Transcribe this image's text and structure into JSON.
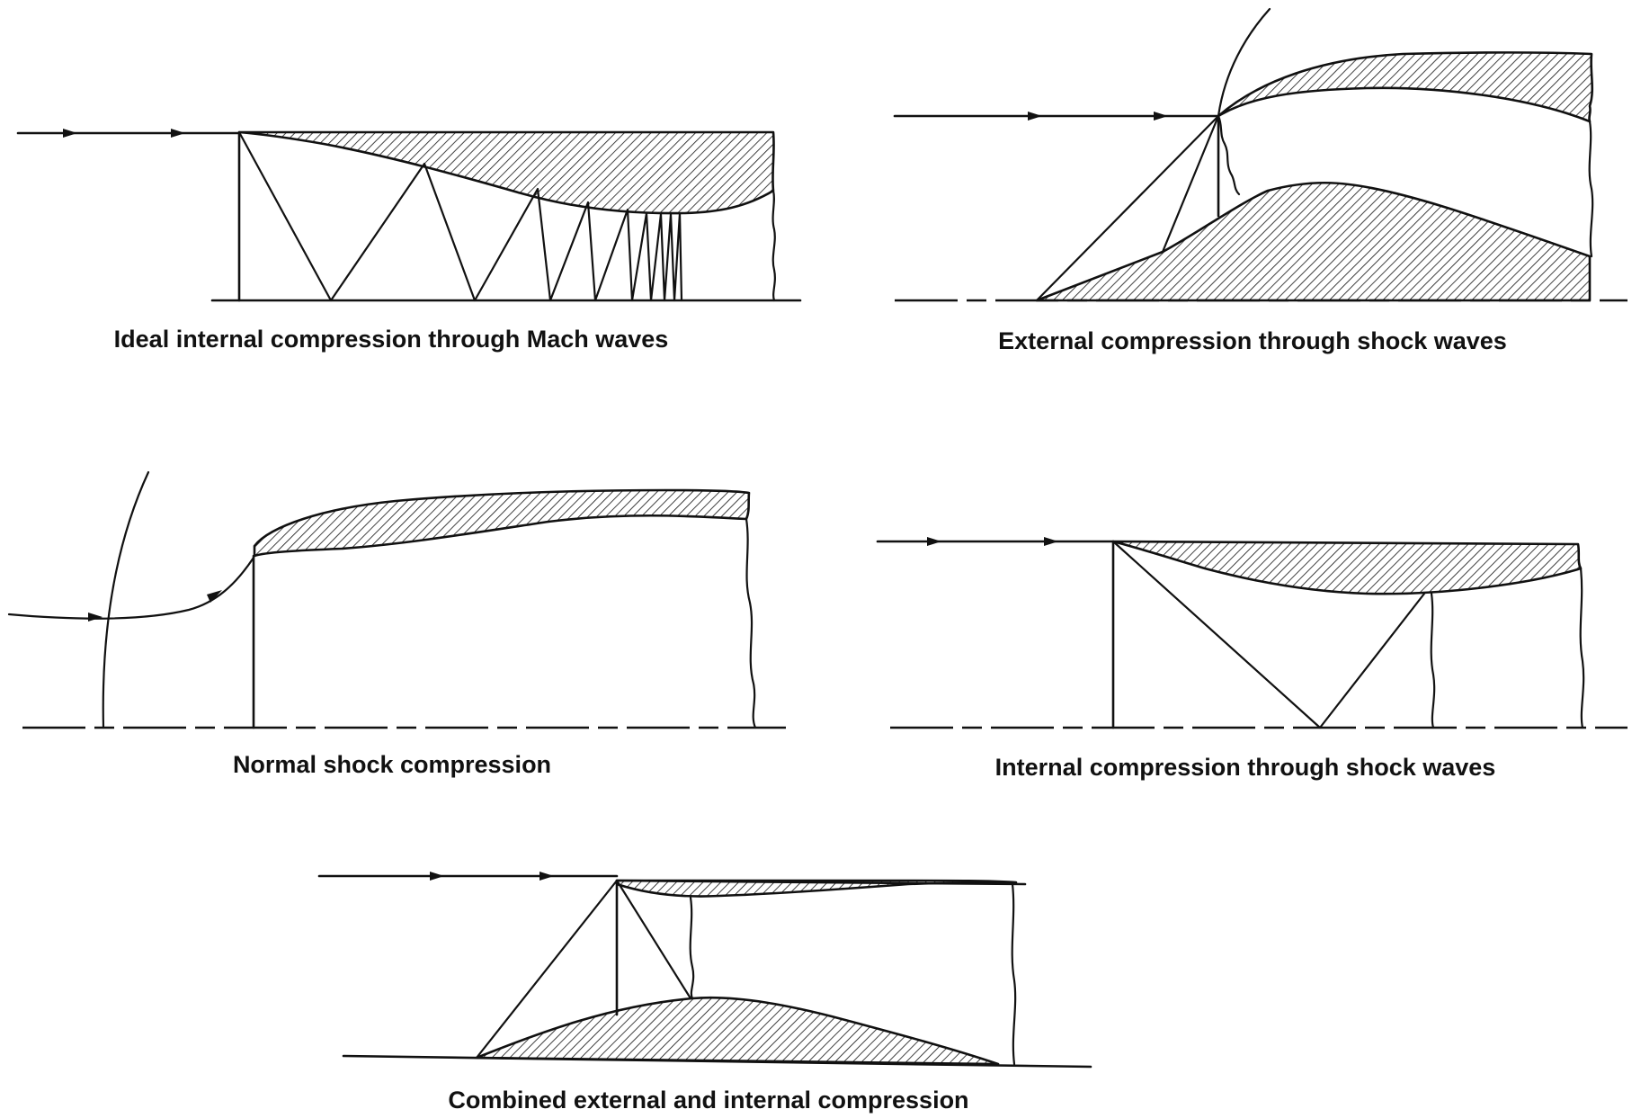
{
  "captions": {
    "ideal_internal": "Ideal internal compression through Mach waves",
    "external_shock": "External compression through shock waves",
    "normal_shock": "Normal shock compression",
    "internal_shock": "Internal compression through shock waves",
    "combined": "Combined external and internal compression"
  },
  "colors": {
    "ink": "#111111",
    "background": "#ffffff"
  }
}
